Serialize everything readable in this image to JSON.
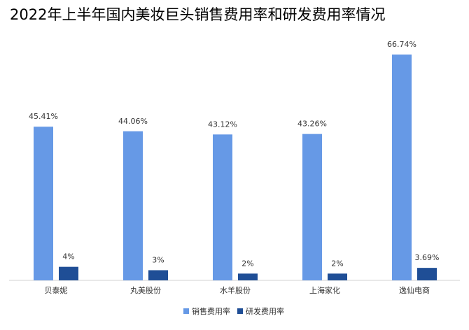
{
  "chart_data": {
    "type": "bar",
    "title": "2022年上半年国内美妆巨头销售费用率和研发费用率情况",
    "categories": [
      "贝泰妮",
      "丸美股份",
      "水羊股份",
      "上海家化",
      "逸仙电商"
    ],
    "series": [
      {
        "name": "销售费用率",
        "color": "#6699e6",
        "values": [
          45.41,
          44.06,
          43.12,
          43.26,
          66.74
        ],
        "value_labels": [
          "45.41%",
          "44.06%",
          "43.12%",
          "43.26%",
          "66.74%"
        ]
      },
      {
        "name": "研发费用率",
        "color": "#1f4e96",
        "values": [
          4,
          3,
          2,
          2,
          3.69
        ],
        "value_labels": [
          "4%",
          "3%",
          "2%",
          "2%",
          "3.69%"
        ]
      }
    ],
    "legend": "bottom"
  }
}
